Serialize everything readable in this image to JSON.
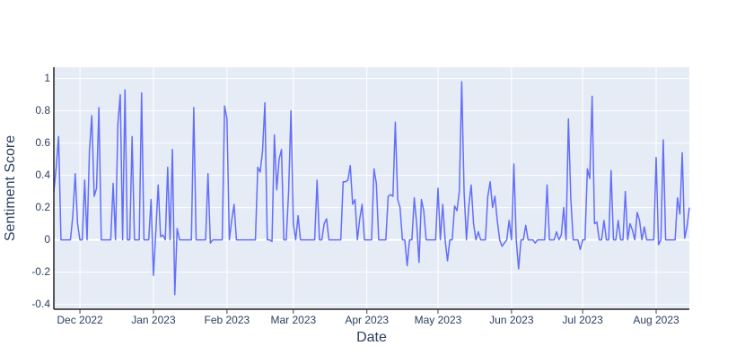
{
  "chart_data": {
    "type": "line",
    "xlabel": "Date",
    "ylabel": "Sentiment Score",
    "series": [
      {
        "color": "#636efa",
        "values": [
          0.3,
          0.45,
          0.64,
          0,
          0,
          0,
          0,
          0,
          0.15,
          0.41,
          0.1,
          0,
          0,
          0.37,
          0,
          0.55,
          0.77,
          0.27,
          0.32,
          0.82,
          0,
          0,
          0,
          0,
          0,
          0.35,
          0,
          0.72,
          0.9,
          0,
          0.93,
          0,
          0,
          0.64,
          0,
          0,
          0,
          0.91,
          0,
          0,
          0,
          0.25,
          -0.22,
          0.05,
          0.34,
          0.02,
          0.03,
          0,
          0.45,
          0,
          0.56,
          -0.34,
          0.07,
          0,
          0,
          0,
          0,
          0,
          0,
          0.82,
          0,
          0,
          0,
          0,
          0,
          0.41,
          -0.02,
          0,
          0,
          0,
          0,
          0,
          0.83,
          0.75,
          0,
          0.12,
          0.22,
          0,
          0,
          0,
          0,
          0,
          0,
          0,
          0,
          0,
          0.45,
          0.42,
          0.55,
          0.85,
          0,
          0,
          -0.01,
          0.65,
          0.31,
          0.5,
          0.56,
          0,
          0,
          0.3,
          0.8,
          0.1,
          0,
          0.15,
          0,
          0,
          0,
          0,
          0,
          0,
          0,
          0.37,
          0,
          0,
          0.1,
          0.13,
          0,
          0,
          0,
          0,
          0,
          0,
          0.36,
          0.36,
          0.37,
          0.46,
          0.22,
          0.25,
          0,
          0.13,
          0.22,
          0,
          0,
          0,
          0,
          0.44,
          0.35,
          0,
          0,
          0,
          0,
          0.27,
          0.28,
          0.27,
          0.73,
          0.25,
          0.2,
          0,
          0,
          -0.16,
          0,
          0,
          0.26,
          0.1,
          -0.14,
          0.25,
          0.18,
          0,
          0,
          0,
          0,
          0,
          0.32,
          0,
          0.22,
          0,
          -0.13,
          0,
          0,
          0.21,
          0.18,
          0.3,
          0.98,
          0.3,
          0,
          0.21,
          0.34,
          0.1,
          0,
          0.05,
          0,
          0,
          0,
          0.27,
          0.36,
          0.2,
          0.27,
          0.12,
          0,
          -0.04,
          -0.02,
          0,
          0.12,
          0,
          0.47,
          0,
          -0.18,
          0,
          0,
          0.09,
          0,
          0,
          0,
          -0.02,
          0,
          0,
          0,
          0,
          0.34,
          0,
          0,
          0,
          0.05,
          0,
          0.03,
          0.2,
          0,
          0.75,
          0.26,
          0,
          0,
          0,
          -0.06,
          0,
          0,
          0.44,
          0.38,
          0.89,
          0.1,
          0.11,
          0,
          0,
          0.12,
          0,
          0,
          0.43,
          0,
          0,
          0.12,
          0,
          0,
          0.3,
          0,
          0.1,
          0.06,
          0,
          0.17,
          0.12,
          0,
          0.08,
          0,
          0,
          0,
          0,
          0.51,
          -0.03,
          0,
          0.62,
          0,
          0,
          0,
          0,
          0,
          0.26,
          0.16,
          0.54,
          0.01,
          0.08,
          0.2
        ]
      }
    ],
    "xlim": [
      0,
      268
    ],
    "xticks": [
      {
        "value": 11,
        "label": "Dec 2022"
      },
      {
        "value": 42,
        "label": "Jan 2023"
      },
      {
        "value": 73,
        "label": "Feb 2023"
      },
      {
        "value": 101,
        "label": "Mar 2023"
      },
      {
        "value": 132,
        "label": "Apr 2023"
      },
      {
        "value": 162,
        "label": "May 2023"
      },
      {
        "value": 193,
        "label": "Jun 2023"
      },
      {
        "value": 223,
        "label": "Jul 2023"
      },
      {
        "value": 254,
        "label": "Aug 2023"
      }
    ],
    "ylim": [
      -0.43,
      1.07
    ],
    "yticks": [
      -0.4,
      -0.2,
      0,
      0.2,
      0.4,
      0.6,
      0.8,
      1
    ],
    "grid": true,
    "background": "#e5ecf6"
  }
}
